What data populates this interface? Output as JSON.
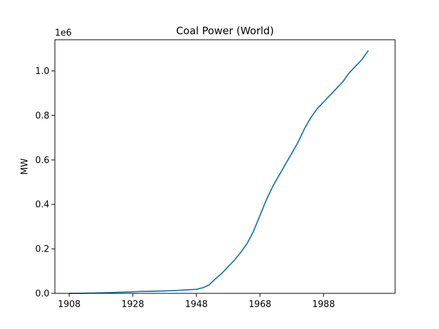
{
  "chart_data": {
    "type": "line",
    "title": "Coal Power (World)",
    "xlabel": "",
    "ylabel": "MW",
    "y_offset_label": "1e6",
    "xlim": [
      1903.5,
      2010.5
    ],
    "ylim": [
      0,
      1140000
    ],
    "grid": false,
    "x_ticks": [
      1908,
      1928,
      1948,
      1968,
      1988
    ],
    "x_tick_labels": [
      "1908",
      "1928",
      "1948",
      "1968",
      "1988"
    ],
    "y_ticks": [
      0,
      200000,
      400000,
      600000,
      800000,
      1000000
    ],
    "y_tick_labels": [
      "0.0",
      "0.2",
      "0.4",
      "0.6",
      "0.8",
      "1.0"
    ],
    "series": [
      {
        "color": "#1f77b4",
        "x": [
          1908,
          1912,
          1916,
          1920,
          1924,
          1928,
          1930,
          1934,
          1938,
          1942,
          1944,
          1948,
          1950,
          1952,
          1954,
          1956,
          1958,
          1960,
          1962,
          1964,
          1966,
          1968,
          1970,
          1972,
          1974,
          1976,
          1978,
          1980,
          1982,
          1984,
          1986,
          1988,
          1990,
          1992,
          1994,
          1996,
          1998,
          2000,
          2002
        ],
        "y": [
          0,
          500,
          1500,
          3000,
          5000,
          7000,
          8500,
          9500,
          11000,
          13000,
          15000,
          18000,
          25000,
          38000,
          65000,
          90000,
          120000,
          150000,
          185000,
          225000,
          280000,
          350000,
          420000,
          480000,
          530000,
          580000,
          630000,
          680000,
          740000,
          790000,
          830000,
          860000,
          890000,
          920000,
          950000,
          990000,
          1020000,
          1050000,
          1090000
        ]
      }
    ]
  }
}
